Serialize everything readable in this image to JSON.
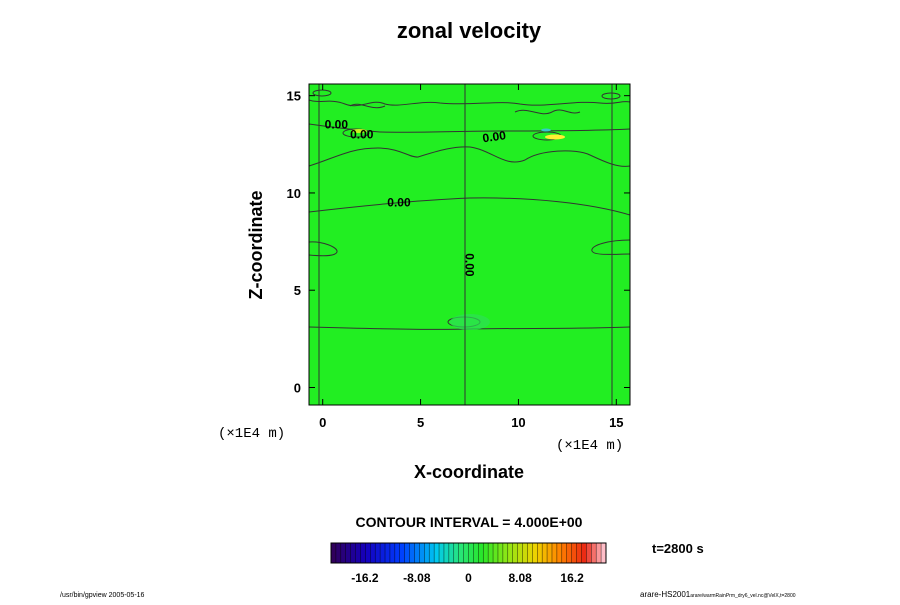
{
  "chart_data": {
    "type": "heatmap",
    "title": "zonal velocity",
    "xlabel": "X-coordinate",
    "ylabel": "Z-coordinate",
    "x_unit": "(×1E4 m)",
    "y_unit": "(×1E4 m)",
    "xlim": [
      -0.7,
      15.7
    ],
    "ylim": [
      -0.9,
      15.6
    ],
    "x_ticks": [
      "0",
      "5",
      "10",
      "15"
    ],
    "y_ticks": [
      "0",
      "5",
      "10",
      "15"
    ],
    "x_tick_values": [
      0,
      5,
      10,
      15
    ],
    "y_tick_values": [
      0,
      5,
      10,
      15
    ],
    "contour_interval_label": "CONTOUR INTERVAL = 4.000E+00",
    "contour_labels": [
      {
        "text": "0.00",
        "x": 0.1,
        "z": 13.3,
        "rotation": 0
      },
      {
        "text": "0.00",
        "x": 1.4,
        "z": 12.8,
        "rotation": 0
      },
      {
        "text": "0.00",
        "x": 8.2,
        "z": 12.6,
        "rotation": -8
      },
      {
        "text": "0.00",
        "x": 3.3,
        "z": 9.3,
        "rotation": 0
      },
      {
        "text": "0.00",
        "x": 7.3,
        "z": 6.9,
        "rotation": 90
      }
    ],
    "colorbar": {
      "ticks": [
        "-16.2",
        "-8.08",
        "0",
        "8.08",
        "16.2"
      ],
      "tick_values": [
        -16.2,
        -8.08,
        0,
        8.08,
        16.2
      ],
      "range": [
        -21.5,
        21.5
      ],
      "levels": 56
    },
    "time_label": "t=2800 s",
    "dominant_value": 0,
    "field_color": "#22ee22"
  },
  "footer": {
    "left": "/usr/bin/gpview 2005-05-16",
    "right_main": "arare-HS2001",
    "right_small": "arare/warmRainPrm_dry6_vel.nc@VelX,t=2800"
  }
}
